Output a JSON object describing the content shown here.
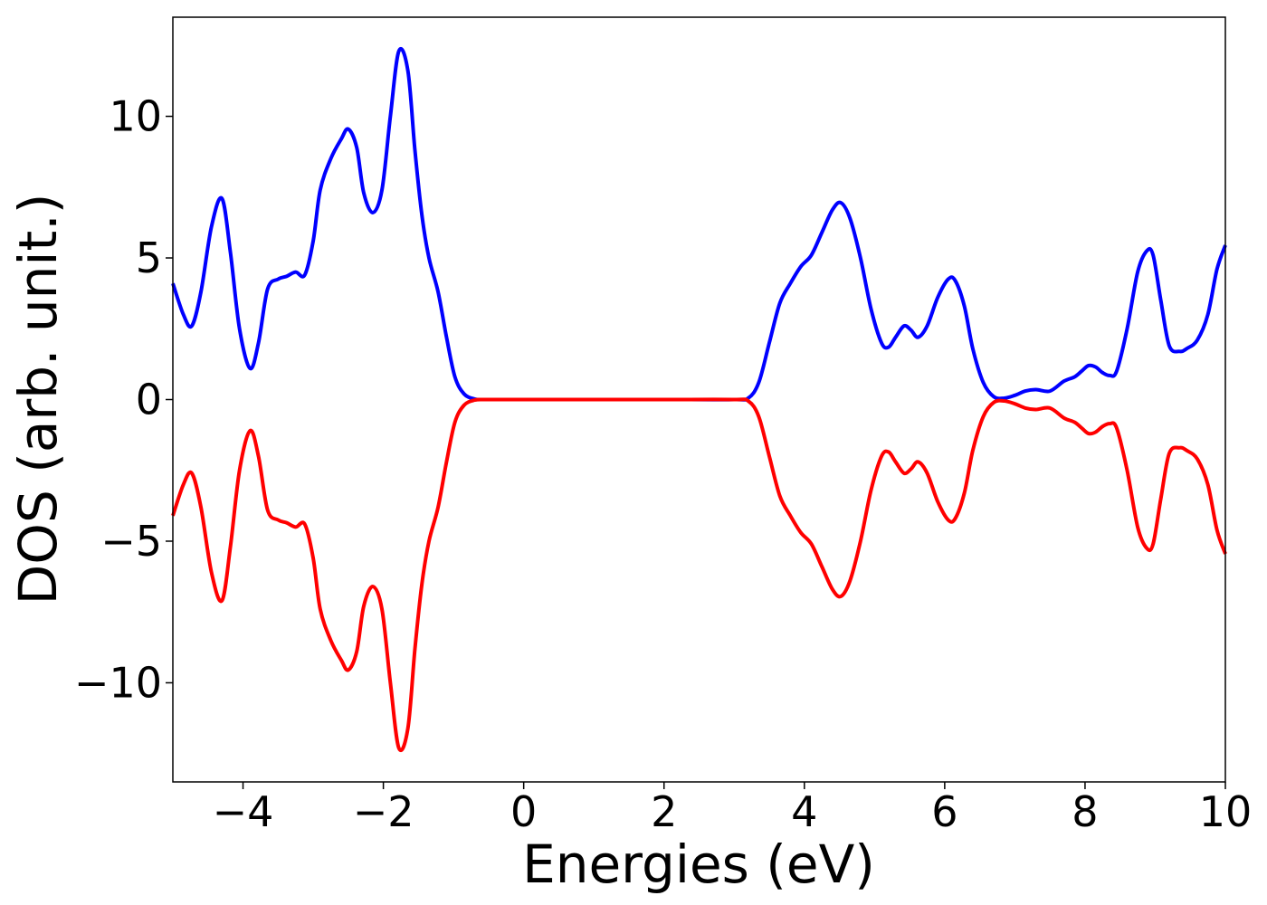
{
  "chart_data": {
    "type": "line",
    "title": "",
    "xlabel": "Energies (eV)",
    "ylabel": "DOS (arb. unit.)",
    "xlim": [
      -5,
      10
    ],
    "ylim": [
      -13.5,
      13.5
    ],
    "grid": false,
    "legend": "none",
    "x_ticks": [
      -4,
      -2,
      0,
      2,
      4,
      6,
      8,
      10
    ],
    "x_tick_labels": [
      "−4",
      "−2",
      "0",
      "2",
      "4",
      "6",
      "8",
      "10"
    ],
    "y_ticks": [
      -10,
      -5,
      0,
      5,
      10
    ],
    "y_tick_labels": [
      "−10",
      "−5",
      "0",
      "5",
      "10"
    ],
    "series": [
      {
        "color": "#0000ff",
        "x": [
          -5.0,
          -4.85,
          -4.73,
          -4.6,
          -4.45,
          -4.3,
          -4.18,
          -4.05,
          -3.9,
          -3.78,
          -3.65,
          -3.5,
          -3.38,
          -3.25,
          -3.12,
          -3.0,
          -2.9,
          -2.75,
          -2.6,
          -2.5,
          -2.38,
          -2.28,
          -2.15,
          -2.02,
          -1.9,
          -1.78,
          -1.65,
          -1.55,
          -1.45,
          -1.35,
          -1.22,
          -1.1,
          -0.98,
          -0.85,
          -0.7,
          -0.55,
          -0.3,
          0.0,
          1.0,
          2.0,
          3.0,
          3.2,
          3.35,
          3.5,
          3.65,
          3.8,
          3.95,
          4.1,
          4.25,
          4.4,
          4.52,
          4.65,
          4.8,
          4.95,
          5.1,
          5.2,
          5.3,
          5.42,
          5.52,
          5.62,
          5.75,
          5.9,
          6.05,
          6.15,
          6.28,
          6.4,
          6.55,
          6.7,
          6.85,
          7.0,
          7.15,
          7.3,
          7.5,
          7.7,
          7.85,
          7.95,
          8.05,
          8.15,
          8.25,
          8.35,
          8.45,
          8.6,
          8.75,
          8.88,
          8.97,
          9.08,
          9.2,
          9.35,
          9.45,
          9.6,
          9.75,
          9.88,
          10.0
        ],
        "y": [
          4.1,
          3.0,
          2.6,
          3.8,
          6.1,
          7.1,
          5.2,
          2.5,
          1.1,
          2.0,
          3.9,
          4.25,
          4.35,
          4.5,
          4.4,
          5.6,
          7.4,
          8.5,
          9.2,
          9.55,
          8.9,
          7.3,
          6.6,
          7.4,
          10.0,
          12.3,
          11.6,
          8.8,
          6.5,
          5.0,
          3.8,
          2.2,
          0.8,
          0.2,
          0.02,
          0.0,
          0.0,
          0.0,
          0.0,
          0.0,
          0.0,
          0.05,
          0.6,
          2.0,
          3.4,
          4.1,
          4.7,
          5.1,
          5.9,
          6.7,
          6.95,
          6.4,
          5.0,
          3.2,
          2.0,
          1.85,
          2.2,
          2.6,
          2.45,
          2.2,
          2.6,
          3.6,
          4.25,
          4.2,
          3.3,
          1.8,
          0.6,
          0.1,
          0.05,
          0.15,
          0.3,
          0.35,
          0.3,
          0.65,
          0.8,
          1.0,
          1.2,
          1.15,
          0.95,
          0.85,
          1.0,
          2.5,
          4.5,
          5.25,
          5.1,
          3.5,
          1.9,
          1.7,
          1.8,
          2.1,
          3.0,
          4.6,
          5.45
        ]
      },
      {
        "color": "#ff0000",
        "x": [
          -5.0,
          -4.85,
          -4.73,
          -4.6,
          -4.45,
          -4.3,
          -4.18,
          -4.05,
          -3.9,
          -3.78,
          -3.65,
          -3.5,
          -3.38,
          -3.25,
          -3.12,
          -3.0,
          -2.9,
          -2.75,
          -2.6,
          -2.5,
          -2.38,
          -2.28,
          -2.15,
          -2.02,
          -1.9,
          -1.78,
          -1.65,
          -1.55,
          -1.45,
          -1.35,
          -1.22,
          -1.1,
          -0.98,
          -0.85,
          -0.7,
          -0.55,
          -0.3,
          0.0,
          1.0,
          2.0,
          3.0,
          3.2,
          3.35,
          3.5,
          3.65,
          3.8,
          3.95,
          4.1,
          4.25,
          4.4,
          4.52,
          4.65,
          4.8,
          4.95,
          5.1,
          5.2,
          5.3,
          5.42,
          5.52,
          5.62,
          5.75,
          5.9,
          6.05,
          6.15,
          6.28,
          6.4,
          6.55,
          6.7,
          6.85,
          7.0,
          7.15,
          7.3,
          7.5,
          7.7,
          7.85,
          7.95,
          8.05,
          8.15,
          8.25,
          8.35,
          8.45,
          8.6,
          8.75,
          8.88,
          8.97,
          9.08,
          9.2,
          9.35,
          9.45,
          9.6,
          9.75,
          9.88,
          10.0
        ],
        "y": [
          -4.1,
          -3.0,
          -2.6,
          -3.8,
          -6.1,
          -7.1,
          -5.2,
          -2.5,
          -1.1,
          -2.0,
          -3.9,
          -4.25,
          -4.35,
          -4.5,
          -4.4,
          -5.6,
          -7.4,
          -8.5,
          -9.2,
          -9.55,
          -8.9,
          -7.3,
          -6.6,
          -7.4,
          -10.0,
          -12.3,
          -11.6,
          -8.8,
          -6.5,
          -5.0,
          -3.8,
          -2.2,
          -0.8,
          -0.2,
          -0.02,
          0.0,
          0.0,
          0.0,
          0.0,
          0.0,
          0.0,
          -0.05,
          -0.6,
          -2.0,
          -3.4,
          -4.1,
          -4.7,
          -5.1,
          -5.9,
          -6.7,
          -6.95,
          -6.4,
          -5.0,
          -3.2,
          -2.0,
          -1.85,
          -2.2,
          -2.6,
          -2.45,
          -2.2,
          -2.6,
          -3.6,
          -4.25,
          -4.2,
          -3.3,
          -1.8,
          -0.6,
          -0.1,
          -0.05,
          -0.15,
          -0.3,
          -0.35,
          -0.3,
          -0.65,
          -0.8,
          -1.0,
          -1.2,
          -1.15,
          -0.95,
          -0.85,
          -1.0,
          -2.5,
          -4.5,
          -5.25,
          -5.1,
          -3.5,
          -1.9,
          -1.7,
          -1.8,
          -2.1,
          -3.0,
          -4.6,
          -5.45
        ]
      }
    ]
  }
}
